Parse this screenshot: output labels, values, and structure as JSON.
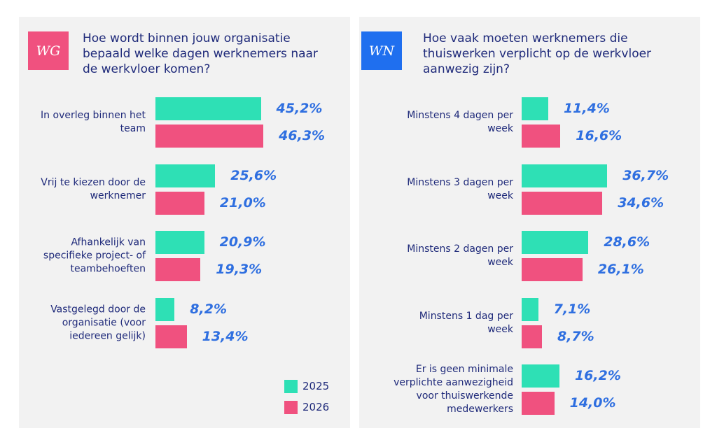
{
  "chart_data": [
    {
      "type": "bar",
      "badge": "WG",
      "badge_color": "#f0517f",
      "title": "Hoe wordt binnen jouw organisatie bepaald welke dagen werknemers naar de werkvloer komen?",
      "categories": [
        "In overleg binnen het team",
        "Vrij te kiezen door de werknemer",
        "Afhankelijk van specifieke project- of teambehoeften",
        "Vastgelegd door de organisatie (voor iedereen gelijk)"
      ],
      "series": [
        {
          "name": "2025",
          "color": "#2ee0b5",
          "values": [
            45.2,
            25.6,
            20.9,
            8.2
          ],
          "value_labels": [
            "45,2%",
            "25,6%",
            "20,9%",
            "8,2%"
          ]
        },
        {
          "name": "2026",
          "color": "#f0517f",
          "values": [
            46.3,
            21.0,
            19.3,
            13.4
          ],
          "value_labels": [
            "46,3%",
            "21,0%",
            "19,3%",
            "13,4%"
          ]
        }
      ],
      "legend": true
    },
    {
      "type": "bar",
      "badge": "WN",
      "badge_color": "#1f6fef",
      "title": "Hoe vaak moeten werknemers die thuiswerken verplicht op de werkvloer aanwezig zijn?",
      "categories": [
        "Minstens 4 dagen per week",
        "Minstens 3 dagen per week",
        "Minstens 2 dagen per week",
        "Minstens 1 dag per week",
        "Er is geen minimale verplichte aanwezigheid voor thuiswerkende medewerkers"
      ],
      "series": [
        {
          "name": "2025",
          "color": "#2ee0b5",
          "values": [
            11.4,
            36.7,
            28.6,
            7.1,
            16.2
          ],
          "value_labels": [
            "11,4%",
            "36,7%",
            "28,6%",
            "7,1%",
            "16,2%"
          ]
        },
        {
          "name": "2026",
          "color": "#f0517f",
          "values": [
            16.6,
            34.6,
            26.1,
            8.7,
            14.0
          ],
          "value_labels": [
            "16,6%",
            "34,6%",
            "26,1%",
            "8,7%",
            "14,0%"
          ]
        }
      ],
      "legend": false
    }
  ]
}
